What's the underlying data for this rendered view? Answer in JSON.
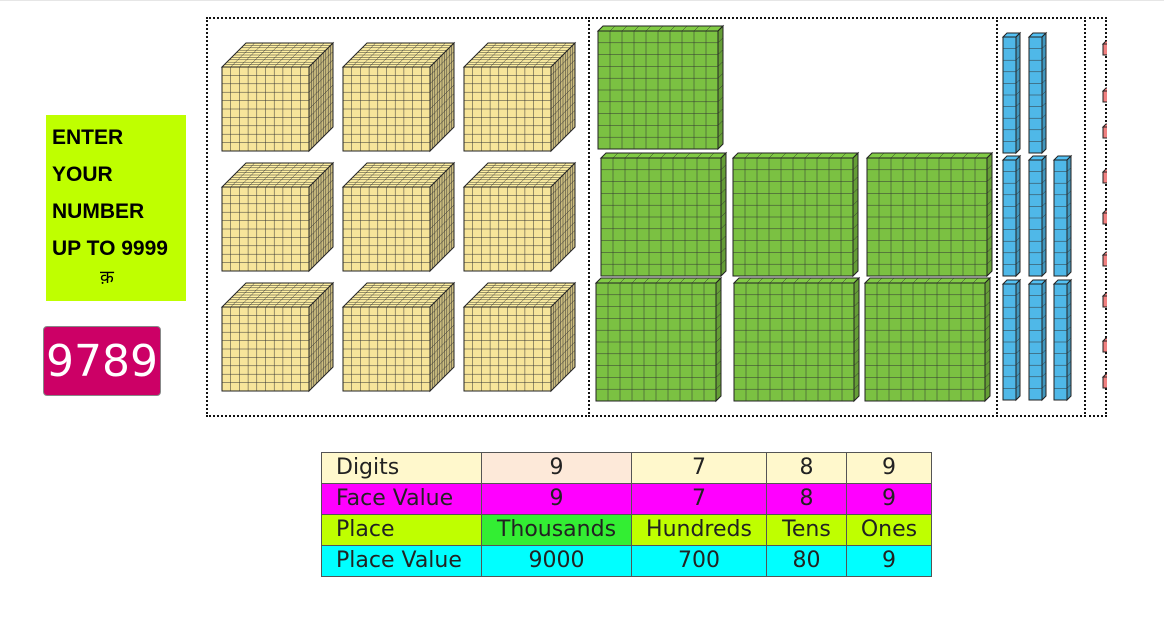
{
  "prompt": {
    "lines": [
      "ENTER",
      "YOUR",
      "NUMBER",
      "UP TO 9999"
    ],
    "arrow": "क़"
  },
  "number": {
    "value": "9789"
  },
  "blocks": {
    "thousands": 9,
    "hundreds": 7,
    "tens": 8,
    "ones": 9,
    "colors": {
      "thousands": "#f7e59a",
      "hundreds": "#7bc142",
      "tens": "#4fb8e8",
      "ones": "#f08080",
      "prompt_bg": "#bfff00",
      "number_bg": "#cc0066"
    }
  },
  "table": {
    "rows": [
      {
        "label": "Digits",
        "cells": [
          "9",
          "7",
          "8",
          "9"
        ],
        "bg": "#fff8cc",
        "first_bg": "#fde9d9"
      },
      {
        "label": "Face Value",
        "cells": [
          "9",
          "7",
          "8",
          "9"
        ],
        "bg": "#ff00ff",
        "first_bg": "#ff00ff"
      },
      {
        "label": "Place",
        "cells": [
          "Thousands",
          "Hundreds",
          "Tens",
          "Ones"
        ],
        "bg": "#bfff00",
        "first_bg": "#33ee33"
      },
      {
        "label": "Place Value",
        "cells": [
          "9000",
          "700",
          "80",
          "9"
        ],
        "bg": "#00ffff",
        "first_bg": "#00ffff"
      }
    ]
  }
}
